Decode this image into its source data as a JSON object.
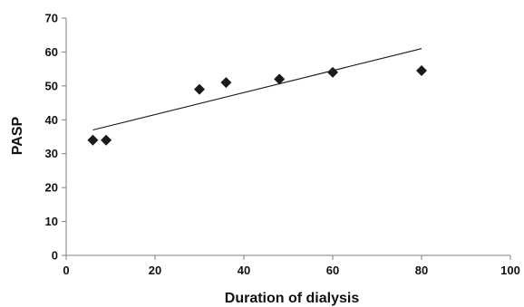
{
  "chart_data": {
    "type": "scatter",
    "title": "",
    "xlabel": "Duration of dialysis",
    "ylabel": "PASP",
    "xlim": [
      0,
      100
    ],
    "ylim": [
      0,
      70
    ],
    "xticks": [
      0,
      20,
      40,
      60,
      80,
      100
    ],
    "yticks": [
      0,
      10,
      20,
      30,
      40,
      50,
      60,
      70
    ],
    "grid": false,
    "legend": "none",
    "marker": "diamond",
    "marker_color": "#1a1a1a",
    "points": [
      {
        "x": 6,
        "y": 34
      },
      {
        "x": 9,
        "y": 34
      },
      {
        "x": 30,
        "y": 49
      },
      {
        "x": 36,
        "y": 51
      },
      {
        "x": 48,
        "y": 52
      },
      {
        "x": 60,
        "y": 54
      },
      {
        "x": 80,
        "y": 54.5
      }
    ],
    "trendline": {
      "x_start": 6,
      "y_start": 37,
      "x_end": 80,
      "y_end": 61
    }
  }
}
